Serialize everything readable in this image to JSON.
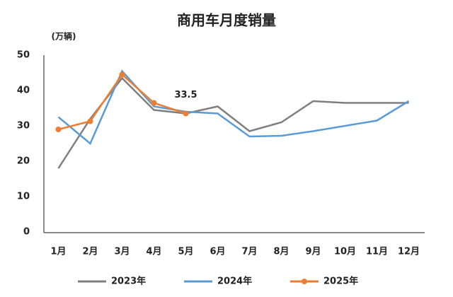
{
  "chart_data": {
    "type": "line",
    "title": "商用车月度销量",
    "y_label": "(万辆)",
    "categories": [
      "1月",
      "2月",
      "3月",
      "4月",
      "5月",
      "6月",
      "7月",
      "8月",
      "9月",
      "10月",
      "11月",
      "12月"
    ],
    "ylim": [
      0,
      50
    ],
    "yticks": [
      0,
      10,
      20,
      30,
      40,
      50
    ],
    "grid": false,
    "legend": "bottom",
    "series": [
      {
        "name": "2023年",
        "color": "#7f7f7f",
        "values": [
          18,
          32,
          43.5,
          34.5,
          33.5,
          35.5,
          28.5,
          31,
          37,
          36.5,
          36.5,
          36.5
        ]
      },
      {
        "name": "2024年",
        "color": "#5b9bd5",
        "values": [
          32.5,
          25,
          45.5,
          35.5,
          34,
          33.5,
          27,
          27.2,
          28.5,
          30,
          31.5,
          37
        ]
      },
      {
        "name": "2025年",
        "color": "#ed7d31",
        "values": [
          29,
          31.3,
          44.5,
          36.5,
          33.5,
          null,
          null,
          null,
          null,
          null,
          null,
          null
        ],
        "markers": true
      }
    ]
  }
}
